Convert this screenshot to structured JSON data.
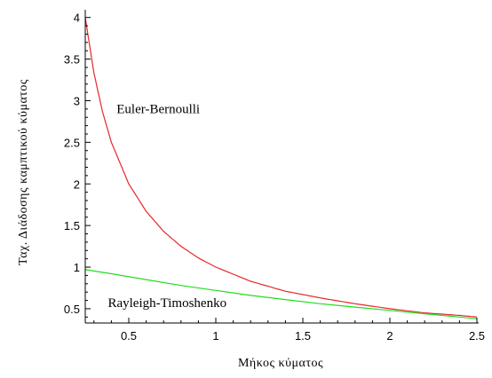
{
  "chart_data": {
    "type": "line",
    "title": "",
    "xlabel": "Μήκος κύματος",
    "ylabel": "Ταχ. Διάδοσης καμπτικού κύματος",
    "xlim": [
      0.25,
      2.5
    ],
    "ylim": [
      0.35,
      4.05
    ],
    "grid": false,
    "legend": "none",
    "x_ticks": [
      0.5,
      1,
      1.5,
      2,
      2.5
    ],
    "x_tick_labels": [
      "0.5",
      "1",
      "1.5",
      "2",
      "2.5"
    ],
    "y_ticks": [
      0.5,
      1,
      1.5,
      2,
      2.5,
      3,
      3.5,
      4
    ],
    "y_tick_labels": [
      "0.5",
      "1",
      "1.5",
      "2",
      "2.5",
      "3",
      "3.5",
      "4"
    ],
    "annotations": [
      {
        "text": "Euler-Bernoulli",
        "x": 0.43,
        "y": 2.85
      },
      {
        "text": "Rayleigh-Timoshenko",
        "x": 0.38,
        "y": 0.52
      }
    ],
    "series": [
      {
        "color": "#e8262a",
        "x": [
          0.25,
          0.3,
          0.35,
          0.4,
          0.5,
          0.6,
          0.7,
          0.8,
          0.9,
          1.0,
          1.2,
          1.4,
          1.6,
          1.8,
          2.0,
          2.2,
          2.4,
          2.5
        ],
        "y": [
          4.0,
          3.33,
          2.86,
          2.5,
          2.0,
          1.67,
          1.43,
          1.25,
          1.11,
          1.0,
          0.83,
          0.71,
          0.63,
          0.56,
          0.5,
          0.45,
          0.42,
          0.4
        ]
      },
      {
        "color": "#22dd22",
        "x": [
          0.25,
          0.4,
          0.6,
          0.8,
          1.0,
          1.2,
          1.4,
          1.6,
          1.8,
          2.0,
          2.2,
          2.4,
          2.5
        ],
        "y": [
          0.97,
          0.92,
          0.85,
          0.78,
          0.72,
          0.66,
          0.61,
          0.56,
          0.52,
          0.48,
          0.44,
          0.4,
          0.38
        ]
      }
    ]
  }
}
